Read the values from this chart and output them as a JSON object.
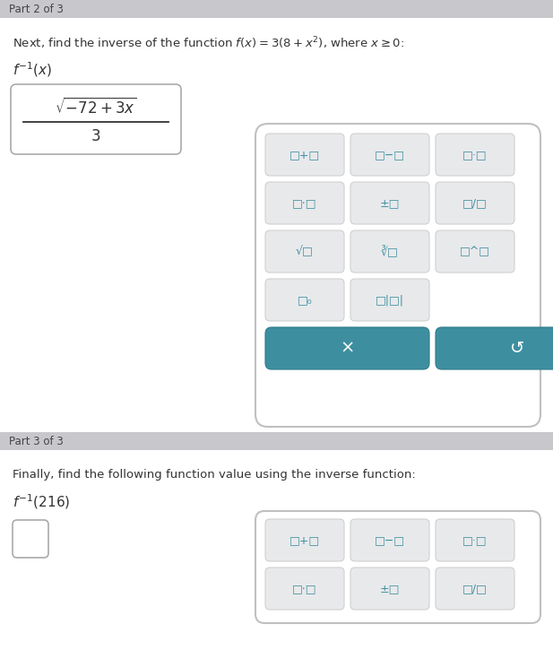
{
  "page_bg": "#eef0f3",
  "white_bg": "#ffffff",
  "header_bg": "#c8c8cc",
  "teal_color": "#3d8fa0",
  "btn_bg": "#e8e9eb",
  "btn_border": "#d0d0d0",
  "text_dark": "#333333",
  "text_medium": "#555555",
  "part2_header": "Part 2 of 3",
  "part2_question": "Next, find the inverse of the function $f(x)=3(8+x^2)$, where $x\\geq 0$:",
  "part2_inv_label": "$f^{-1}(x)$",
  "part3_header": "Part 3 of 3",
  "part3_question": "Finally, find the following function value using the inverse function:",
  "part3_inv_label": "$f^{-1}(216)$",
  "kp1_rows": [
    [
      "□+□",
      "□−□",
      "□·□"
    ],
    [
      "□⋅□",
      "±□",
      "□/□"
    ],
    [
      "√□",
      "∛□",
      "□^□"
    ],
    [
      "□₀",
      "□|□|",
      ""
    ]
  ],
  "kp1_teal": [
    "×",
    "↺"
  ],
  "kp2_rows": [
    [
      "□+□",
      "□−□",
      "□·□"
    ],
    [
      "□⋅□",
      "±□",
      "□/□"
    ]
  ]
}
